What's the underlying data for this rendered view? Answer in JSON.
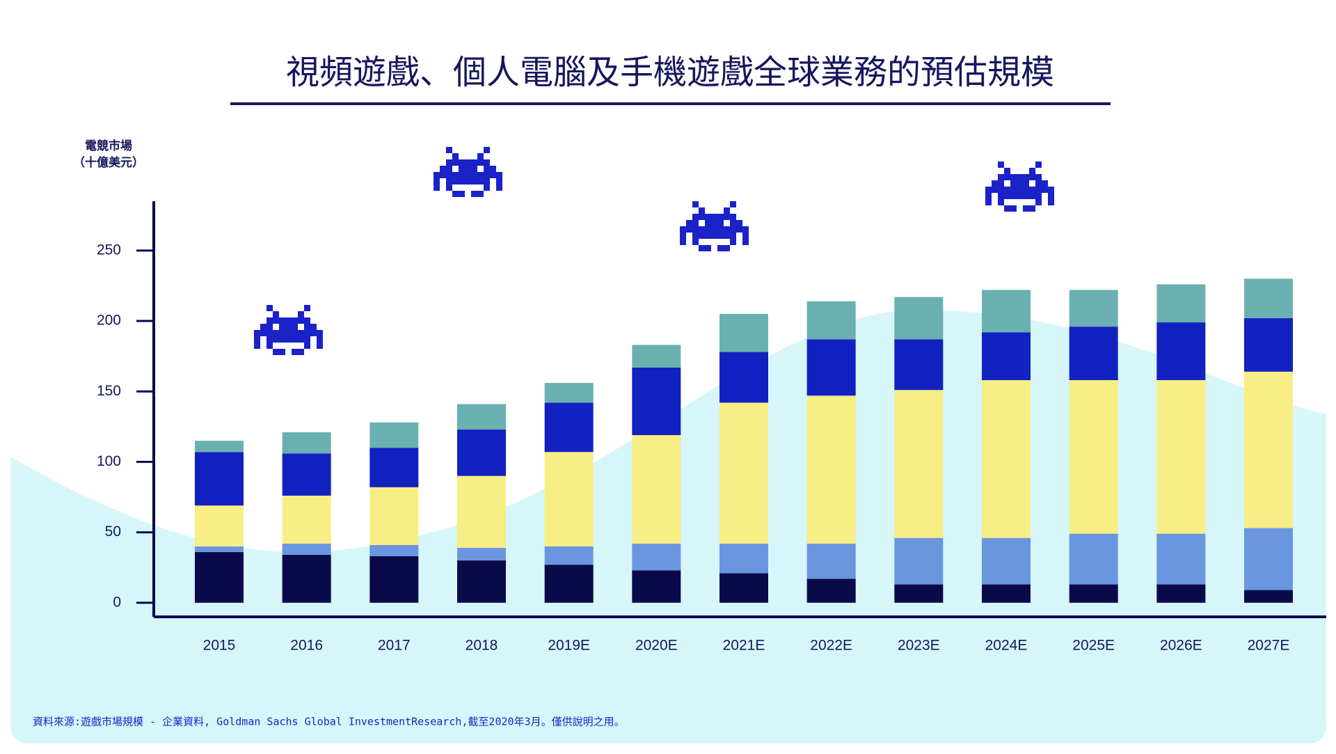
{
  "chart_data": {
    "type": "stacked_bar",
    "title": "視頻遊戲、個人電腦及手機遊戲全球業務的預估規模",
    "y_label": [
      "電競市場",
      "（十億美元）"
    ],
    "categories": [
      "2015",
      "2016",
      "2017",
      "2018",
      "2019E",
      "2020E",
      "2021E",
      "2022E",
      "2023E",
      "2024E",
      "2025E",
      "2026E",
      "2027E"
    ],
    "series": [
      {
        "color": "#0a0a4a",
        "values": [
          36,
          34,
          33,
          30,
          27,
          23,
          21,
          17,
          13,
          13,
          13,
          13,
          9
        ]
      },
      {
        "color": "#6a96e0",
        "values": [
          4,
          8,
          8,
          9,
          13,
          19,
          21,
          25,
          33,
          33,
          36,
          36,
          44
        ]
      },
      {
        "color": "#f7ee85",
        "values": [
          29,
          34,
          41,
          51,
          67,
          77,
          100,
          105,
          105,
          112,
          109,
          109,
          111
        ]
      },
      {
        "color": "#1222c0",
        "values": [
          38,
          30,
          28,
          33,
          35,
          48,
          36,
          40,
          36,
          34,
          38,
          41,
          38
        ]
      },
      {
        "color": "#6bb0b0",
        "values": [
          8,
          15,
          18,
          18,
          14,
          16,
          27,
          27,
          30,
          30,
          26,
          27,
          28
        ]
      }
    ],
    "ylim": [
      -10,
      285
    ],
    "yticks": [
      0,
      50,
      100,
      150,
      200,
      250
    ],
    "source": "資料來源:遊戲市場規模 - 企業資料, Goldman Sachs Global InvestmentResearch,截至2020年3月。僅供說明之用。"
  }
}
